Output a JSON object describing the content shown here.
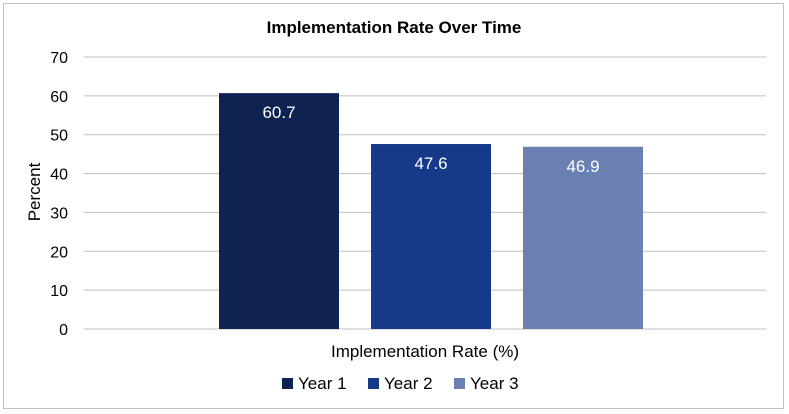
{
  "chart_data": {
    "type": "bar",
    "title": "Implementation Rate Over Time",
    "xlabel": "Implementation Rate (%)",
    "ylabel": "Percent",
    "ylim": [
      0,
      70
    ],
    "yticks": [
      0,
      10,
      20,
      30,
      40,
      50,
      60,
      70
    ],
    "grid": true,
    "legend_position": "bottom",
    "series": [
      {
        "name": "Year 1",
        "value": 60.7,
        "label": "60.7",
        "color": "#0e2352"
      },
      {
        "name": "Year 2",
        "value": 47.6,
        "label": "47.6",
        "color": "#17398a"
      },
      {
        "name": "Year 3",
        "value": 46.9,
        "label": "46.9",
        "color": "#6b80b2"
      }
    ]
  }
}
